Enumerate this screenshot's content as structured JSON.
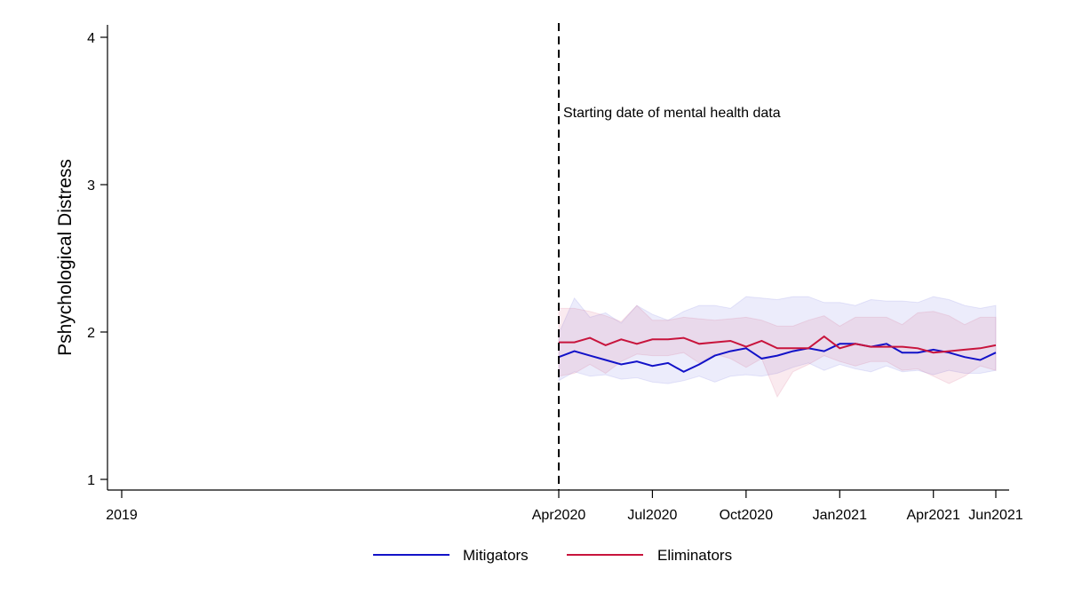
{
  "chart_data": {
    "type": "line",
    "title": "",
    "xlabel": "",
    "ylabel": "Pshychological Distress",
    "ylim": [
      1,
      4
    ],
    "yticks": [
      1,
      2,
      3,
      4
    ],
    "x_start": "2019-02",
    "x_end": "2021-06",
    "xticks": [
      {
        "date": "2019-02",
        "label": "2019"
      },
      {
        "date": "2020-04",
        "label": "Apr2020"
      },
      {
        "date": "2020-07",
        "label": "Jul2020"
      },
      {
        "date": "2020-10",
        "label": "Oct2020"
      },
      {
        "date": "2021-01",
        "label": "Jan2021"
      },
      {
        "date": "2021-04",
        "label": "Apr2021"
      },
      {
        "date": "2021-06",
        "label": "Jun2021"
      }
    ],
    "reference_line": {
      "date": "2020-04",
      "label": "Starting date of mental health data"
    },
    "x_periods": [
      "Apr 1",
      "Apr 2",
      "May 1",
      "May 2",
      "Jun 1",
      "Jun 2",
      "Jul 1",
      "Jul 2",
      "Aug 1",
      "Aug 2",
      "Sep 1",
      "Sep 2",
      "Oct 1",
      "Oct 2",
      "Nov 1",
      "Nov 2",
      "Dec 1",
      "Dec 2",
      "Jan 1",
      "Jan 2",
      "Feb 1",
      "Feb 2",
      "Mar 1",
      "Mar 2",
      "Apr 1",
      "Apr 2",
      "May 1",
      "May 2",
      "Jun 1"
    ],
    "series": [
      {
        "name": "Mitigators",
        "color": "#1212c8",
        "band_color": "#6464dc",
        "values": [
          1.83,
          1.87,
          1.84,
          1.81,
          1.78,
          1.8,
          1.77,
          1.79,
          1.73,
          1.78,
          1.84,
          1.87,
          1.89,
          1.82,
          1.84,
          1.87,
          1.89,
          1.87,
          1.92,
          1.92,
          1.9,
          1.92,
          1.86,
          1.86,
          1.88,
          1.86,
          1.83,
          1.81,
          1.86
        ],
        "upper": [
          1.99,
          2.23,
          2.1,
          2.13,
          2.06,
          2.18,
          2.12,
          2.08,
          2.14,
          2.18,
          2.18,
          2.16,
          2.24,
          2.23,
          2.22,
          2.24,
          2.24,
          2.2,
          2.2,
          2.18,
          2.22,
          2.21,
          2.21,
          2.2,
          2.24,
          2.22,
          2.18,
          2.16,
          2.18
        ],
        "lower": [
          1.67,
          1.73,
          1.7,
          1.71,
          1.68,
          1.69,
          1.66,
          1.65,
          1.67,
          1.7,
          1.66,
          1.7,
          1.71,
          1.7,
          1.72,
          1.76,
          1.79,
          1.74,
          1.78,
          1.75,
          1.73,
          1.77,
          1.73,
          1.74,
          1.71,
          1.74,
          1.72,
          1.72,
          1.74
        ]
      },
      {
        "name": "Eliminators",
        "color": "#c8143c",
        "band_color": "#d25078",
        "values": [
          1.93,
          1.93,
          1.96,
          1.91,
          1.95,
          1.92,
          1.95,
          1.95,
          1.96,
          1.92,
          1.93,
          1.94,
          1.9,
          1.94,
          1.89,
          1.89,
          1.89,
          1.97,
          1.89,
          1.92,
          1.9,
          1.9,
          1.9,
          1.89,
          1.86,
          1.87,
          1.88,
          1.89,
          1.91
        ],
        "upper": [
          2.16,
          2.16,
          2.14,
          2.11,
          2.07,
          2.18,
          2.08,
          2.08,
          2.1,
          2.09,
          2.08,
          2.09,
          2.1,
          2.08,
          2.04,
          2.04,
          2.08,
          2.11,
          2.04,
          2.1,
          2.1,
          2.1,
          2.05,
          2.13,
          2.14,
          2.11,
          2.05,
          2.1,
          2.1
        ],
        "lower": [
          1.7,
          1.72,
          1.78,
          1.72,
          1.8,
          1.85,
          1.84,
          1.84,
          1.86,
          1.79,
          1.85,
          1.82,
          1.76,
          1.82,
          1.56,
          1.73,
          1.78,
          1.84,
          1.8,
          1.77,
          1.8,
          1.8,
          1.74,
          1.75,
          1.7,
          1.65,
          1.7,
          1.77,
          1.74
        ]
      }
    ],
    "legend": {
      "position": "bottom-center",
      "entries": [
        "Mitigators",
        "Eliminators"
      ]
    }
  }
}
